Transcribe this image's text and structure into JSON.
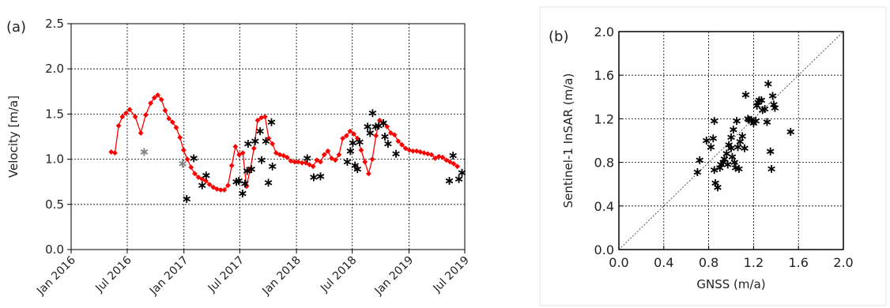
{
  "chart_data": [
    {
      "panel_label": "(a)",
      "type": "line",
      "ylabel": "Velocity [m/a]",
      "ylim": [
        0.0,
        2.5
      ],
      "yticks": [
        "0.0",
        "0.5",
        "1.0",
        "1.5",
        "2.0",
        "2.5"
      ],
      "xlim": [
        "2016-01-01",
        "2019-07-01"
      ],
      "xticks": [
        {
          "date": "2016-01-01",
          "label": "Jan 2016"
        },
        {
          "date": "2016-07-01",
          "label": "Jul 2016"
        },
        {
          "date": "2017-01-01",
          "label": "Jan 2017"
        },
        {
          "date": "2017-07-01",
          "label": "Jul 2017"
        },
        {
          "date": "2018-01-01",
          "label": "Jan 2018"
        },
        {
          "date": "2018-07-01",
          "label": "Jul 2018"
        },
        {
          "date": "2019-01-01",
          "label": "Jan 2019"
        },
        {
          "date": "2019-07-01",
          "label": "Jul 2019"
        }
      ],
      "grid": true,
      "series": [
        {
          "style": "line-diamond",
          "color": "#ff0000",
          "points": [
            [
              "2016-05-10",
              1.08
            ],
            [
              "2016-05-22",
              1.07
            ],
            [
              "2016-06-03",
              1.37
            ],
            [
              "2016-06-15",
              1.47
            ],
            [
              "2016-06-27",
              1.51
            ],
            [
              "2016-07-09",
              1.55
            ],
            [
              "2016-07-27",
              1.47
            ],
            [
              "2016-08-14",
              1.29
            ],
            [
              "2016-08-30",
              1.49
            ],
            [
              "2016-09-15",
              1.62
            ],
            [
              "2016-09-27",
              1.68
            ],
            [
              "2016-10-08",
              1.71
            ],
            [
              "2016-10-20",
              1.66
            ],
            [
              "2016-11-01",
              1.54
            ],
            [
              "2016-11-13",
              1.45
            ],
            [
              "2016-11-25",
              1.41
            ],
            [
              "2016-12-07",
              1.35
            ],
            [
              "2016-12-19",
              1.24
            ],
            [
              "2016-12-31",
              1.1
            ],
            [
              "2017-01-12",
              1.0
            ],
            [
              "2017-01-24",
              0.91
            ],
            [
              "2017-02-05",
              0.84
            ],
            [
              "2017-02-17",
              0.8
            ],
            [
              "2017-03-01",
              0.78
            ],
            [
              "2017-03-13",
              0.76
            ],
            [
              "2017-03-25",
              0.72
            ],
            [
              "2017-04-06",
              0.69
            ],
            [
              "2017-04-18",
              0.67
            ],
            [
              "2017-04-30",
              0.66
            ],
            [
              "2017-05-12",
              0.66
            ],
            [
              "2017-05-24",
              0.71
            ],
            [
              "2017-06-05",
              0.93
            ],
            [
              "2017-06-17",
              1.14
            ],
            [
              "2017-06-29",
              1.05
            ],
            [
              "2017-07-11",
              1.07
            ],
            [
              "2017-07-23",
              0.7
            ],
            [
              "2017-08-04",
              0.89
            ],
            [
              "2017-08-16",
              1.12
            ],
            [
              "2017-08-28",
              1.43
            ],
            [
              "2017-09-09",
              1.46
            ],
            [
              "2017-09-21",
              1.47
            ],
            [
              "2017-10-03",
              1.23
            ],
            [
              "2017-10-15",
              1.17
            ],
            [
              "2017-10-27",
              1.07
            ],
            [
              "2017-11-08",
              1.05
            ],
            [
              "2017-11-20",
              1.04
            ],
            [
              "2017-12-02",
              1.02
            ],
            [
              "2017-12-14",
              0.98
            ],
            [
              "2017-12-26",
              0.97
            ],
            [
              "2018-01-07",
              0.97
            ],
            [
              "2018-01-19",
              0.96
            ],
            [
              "2018-01-31",
              0.96
            ],
            [
              "2018-02-12",
              0.94
            ],
            [
              "2018-02-24",
              0.92
            ],
            [
              "2018-03-08",
              0.99
            ],
            [
              "2018-03-20",
              0.97
            ],
            [
              "2018-04-01",
              1.05
            ],
            [
              "2018-04-13",
              1.09
            ],
            [
              "2018-04-25",
              1.01
            ],
            [
              "2018-05-07",
              0.99
            ],
            [
              "2018-05-19",
              1.05
            ],
            [
              "2018-05-31",
              1.23
            ],
            [
              "2018-06-12",
              1.26
            ],
            [
              "2018-06-24",
              1.31
            ],
            [
              "2018-07-06",
              1.28
            ],
            [
              "2018-07-18",
              1.23
            ],
            [
              "2018-07-30",
              1.1
            ],
            [
              "2018-08-11",
              0.97
            ],
            [
              "2018-08-23",
              0.84
            ],
            [
              "2018-09-04",
              1.0
            ],
            [
              "2018-09-16",
              1.26
            ],
            [
              "2018-09-28",
              1.43
            ],
            [
              "2018-10-10",
              1.4
            ],
            [
              "2018-10-22",
              1.36
            ],
            [
              "2018-11-03",
              1.29
            ],
            [
              "2018-11-15",
              1.27
            ],
            [
              "2018-11-27",
              1.2
            ],
            [
              "2018-12-09",
              1.16
            ],
            [
              "2018-12-21",
              1.12
            ],
            [
              "2019-01-02",
              1.1
            ],
            [
              "2019-01-14",
              1.09
            ],
            [
              "2019-01-26",
              1.09
            ],
            [
              "2019-02-07",
              1.08
            ],
            [
              "2019-02-19",
              1.07
            ],
            [
              "2019-03-03",
              1.06
            ],
            [
              "2019-03-15",
              1.05
            ],
            [
              "2019-03-27",
              1.01
            ],
            [
              "2019-04-08",
              1.03
            ],
            [
              "2019-04-20",
              1.02
            ],
            [
              "2019-05-02",
              0.99
            ],
            [
              "2019-05-14",
              0.97
            ],
            [
              "2019-05-26",
              0.95
            ],
            [
              "2019-06-07",
              0.92
            ]
          ]
        },
        {
          "style": "asterisk",
          "color": "#808080",
          "points": [
            [
              "2016-08-25",
              1.08
            ],
            [
              "2016-12-28",
              0.95
            ]
          ]
        },
        {
          "style": "asterisk",
          "color": "#000000",
          "points": [
            [
              "2017-01-10",
              0.56
            ],
            [
              "2017-02-02",
              1.01
            ],
            [
              "2017-03-01",
              0.71
            ],
            [
              "2017-03-14",
              0.82
            ],
            [
              "2017-06-20",
              0.75
            ],
            [
              "2017-06-28",
              0.76
            ],
            [
              "2017-07-10",
              0.62
            ],
            [
              "2017-07-18",
              0.73
            ],
            [
              "2017-07-25",
              0.87
            ],
            [
              "2017-07-28",
              1.17
            ],
            [
              "2017-08-08",
              0.89
            ],
            [
              "2017-08-20",
              1.2
            ],
            [
              "2017-09-05",
              1.31
            ],
            [
              "2017-09-10",
              0.99
            ],
            [
              "2017-09-24",
              1.2
            ],
            [
              "2017-10-02",
              0.74
            ],
            [
              "2017-10-12",
              1.41
            ],
            [
              "2017-10-15",
              0.92
            ],
            [
              "2018-02-05",
              1.01
            ],
            [
              "2018-02-26",
              0.8
            ],
            [
              "2018-03-20",
              0.81
            ],
            [
              "2018-06-15",
              0.97
            ],
            [
              "2018-06-25",
              1.09
            ],
            [
              "2018-07-03",
              1.18
            ],
            [
              "2018-07-10",
              0.93
            ],
            [
              "2018-07-18",
              0.89
            ],
            [
              "2018-07-25",
              1.19
            ],
            [
              "2018-08-20",
              1.36
            ],
            [
              "2018-08-28",
              1.29
            ],
            [
              "2018-09-05",
              1.51
            ],
            [
              "2018-09-15",
              1.36
            ],
            [
              "2018-09-25",
              1.37
            ],
            [
              "2018-10-10",
              1.4
            ],
            [
              "2018-10-15",
              1.25
            ],
            [
              "2018-10-25",
              1.17
            ],
            [
              "2018-11-20",
              1.06
            ],
            [
              "2019-05-12",
              0.76
            ],
            [
              "2019-05-24",
              1.04
            ],
            [
              "2019-06-12",
              0.78
            ],
            [
              "2019-06-22",
              0.85
            ]
          ]
        }
      ]
    },
    {
      "panel_label": "(b)",
      "type": "scatter",
      "xlabel": "GNSS (m/a)",
      "ylabel": "Sentinel-1 InSAR (m/a)",
      "xlim": [
        0.0,
        2.0
      ],
      "ylim": [
        0.0,
        2.0
      ],
      "xticks": [
        "0.0",
        "0.4",
        "0.8",
        "1.2",
        "1.6",
        "2.0"
      ],
      "yticks": [
        "0.0",
        "0.4",
        "0.8",
        "1.2",
        "1.6",
        "2.0"
      ],
      "grid": true,
      "reference_line": "1:1",
      "point_style": "asterisk",
      "point_color": "#000000",
      "points": [
        [
          0.7,
          0.71
        ],
        [
          0.72,
          0.82
        ],
        [
          0.78,
          1.0
        ],
        [
          0.82,
          0.94
        ],
        [
          0.84,
          1.02
        ],
        [
          0.85,
          0.73
        ],
        [
          0.86,
          0.61
        ],
        [
          0.85,
          1.18
        ],
        [
          0.88,
          0.57
        ],
        [
          0.9,
          0.75
        ],
        [
          0.91,
          0.78
        ],
        [
          0.93,
          0.8
        ],
        [
          0.94,
          0.83
        ],
        [
          0.96,
          0.88
        ],
        [
          0.97,
          0.78
        ],
        [
          0.98,
          0.96
        ],
        [
          1.0,
          0.93
        ],
        [
          1.0,
          1.03
        ],
        [
          1.01,
          0.85
        ],
        [
          1.02,
          1.1
        ],
        [
          1.03,
          0.8
        ],
        [
          1.04,
          0.75
        ],
        [
          1.05,
          1.18
        ],
        [
          1.06,
          0.94
        ],
        [
          1.07,
          0.74
        ],
        [
          1.08,
          0.99
        ],
        [
          1.1,
          1.04
        ],
        [
          1.12,
          0.93
        ],
        [
          1.13,
          1.42
        ],
        [
          1.15,
          1.2
        ],
        [
          1.16,
          1.19
        ],
        [
          1.18,
          1.19
        ],
        [
          1.2,
          1.16
        ],
        [
          1.22,
          1.18
        ],
        [
          1.23,
          1.32
        ],
        [
          1.24,
          1.35
        ],
        [
          1.25,
          1.37
        ],
        [
          1.27,
          1.37
        ],
        [
          1.28,
          1.28
        ],
        [
          1.3,
          1.29
        ],
        [
          1.32,
          1.17
        ],
        [
          1.33,
          1.52
        ],
        [
          1.35,
          0.9
        ],
        [
          1.36,
          0.74
        ],
        [
          1.37,
          1.41
        ],
        [
          1.38,
          1.33
        ],
        [
          1.39,
          1.3
        ],
        [
          1.53,
          1.08
        ]
      ]
    }
  ]
}
